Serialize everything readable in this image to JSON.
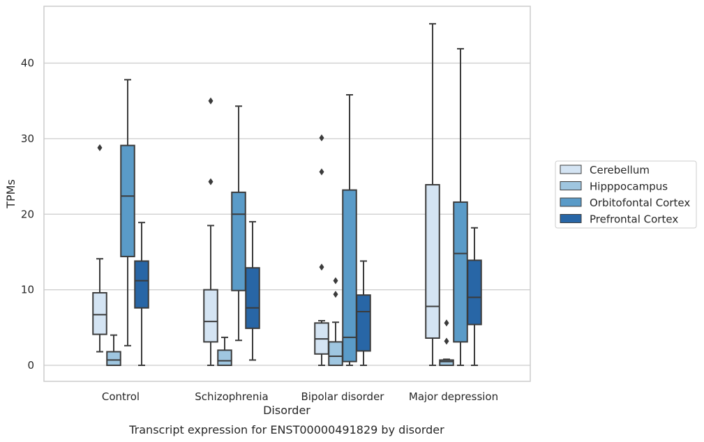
{
  "chart_data": {
    "type": "box",
    "caption": "Transcript expression for ENST00000491829 by disorder",
    "xlabel": "Disorder",
    "ylabel": "TPMs",
    "ylim": [
      -2.2,
      47.5
    ],
    "yticks": [
      0,
      10,
      20,
      30,
      40
    ],
    "grid": "horizontal",
    "legend_position": "right",
    "categories": [
      "Control",
      "Schizophrenia",
      "Bipolar disorder",
      "Major depression"
    ],
    "series": [
      {
        "name": "Cerebellum",
        "color": "#d4e4f3",
        "boxes": [
          {
            "whisker_low": 1.8,
            "q1": 4.1,
            "median": 6.7,
            "q3": 9.6,
            "whisker_high": 14.1,
            "outliers": [
              28.8
            ]
          },
          {
            "whisker_low": 0.0,
            "q1": 3.1,
            "median": 5.8,
            "q3": 10.0,
            "whisker_high": 18.5,
            "outliers": [
              24.3,
              35.0
            ]
          },
          {
            "whisker_low": 0.0,
            "q1": 1.5,
            "median": 3.5,
            "q3": 5.6,
            "whisker_high": 5.9,
            "outliers": [
              13.0,
              25.6,
              30.1
            ]
          },
          {
            "whisker_low": 0.0,
            "q1": 3.6,
            "median": 7.8,
            "q3": 23.9,
            "whisker_high": 45.2,
            "outliers": []
          }
        ]
      },
      {
        "name": "Hipppocampus",
        "color": "#9fc6e0",
        "boxes": [
          {
            "whisker_low": 0.0,
            "q1": 0.0,
            "median": 0.7,
            "q3": 1.8,
            "whisker_high": 4.0,
            "outliers": []
          },
          {
            "whisker_low": 0.0,
            "q1": 0.0,
            "median": 0.6,
            "q3": 2.0,
            "whisker_high": 3.7,
            "outliers": []
          },
          {
            "whisker_low": 0.0,
            "q1": 0.0,
            "median": 1.2,
            "q3": 3.1,
            "whisker_high": 5.7,
            "outliers": [
              9.4,
              11.2
            ]
          },
          {
            "whisker_low": 0.0,
            "q1": 0.0,
            "median": 0.5,
            "q3": 0.7,
            "whisker_high": 0.8,
            "outliers": [
              3.2,
              5.6
            ]
          }
        ]
      },
      {
        "name": "Orbitofontal Cortex",
        "color": "#5a9bc8",
        "boxes": [
          {
            "whisker_low": 2.6,
            "q1": 14.4,
            "median": 22.4,
            "q3": 29.1,
            "whisker_high": 37.8,
            "outliers": []
          },
          {
            "whisker_low": 3.3,
            "q1": 9.9,
            "median": 20.0,
            "q3": 22.9,
            "whisker_high": 34.3,
            "outliers": []
          },
          {
            "whisker_low": 0.0,
            "q1": 0.5,
            "median": 3.7,
            "q3": 23.2,
            "whisker_high": 35.8,
            "outliers": []
          },
          {
            "whisker_low": 0.0,
            "q1": 3.1,
            "median": 14.8,
            "q3": 21.6,
            "whisker_high": 41.9,
            "outliers": []
          }
        ]
      },
      {
        "name": "Prefrontal Cortex",
        "color": "#2866a6",
        "boxes": [
          {
            "whisker_low": 0.0,
            "q1": 7.6,
            "median": 11.2,
            "q3": 13.8,
            "whisker_high": 18.9,
            "outliers": []
          },
          {
            "whisker_low": 0.7,
            "q1": 4.9,
            "median": 7.6,
            "q3": 12.9,
            "whisker_high": 19.0,
            "outliers": []
          },
          {
            "whisker_low": 0.0,
            "q1": 1.9,
            "median": 7.1,
            "q3": 9.3,
            "whisker_high": 13.8,
            "outliers": []
          },
          {
            "whisker_low": 0.0,
            "q1": 5.4,
            "median": 9.0,
            "q3": 13.9,
            "whisker_high": 18.2,
            "outliers": []
          }
        ]
      }
    ]
  }
}
